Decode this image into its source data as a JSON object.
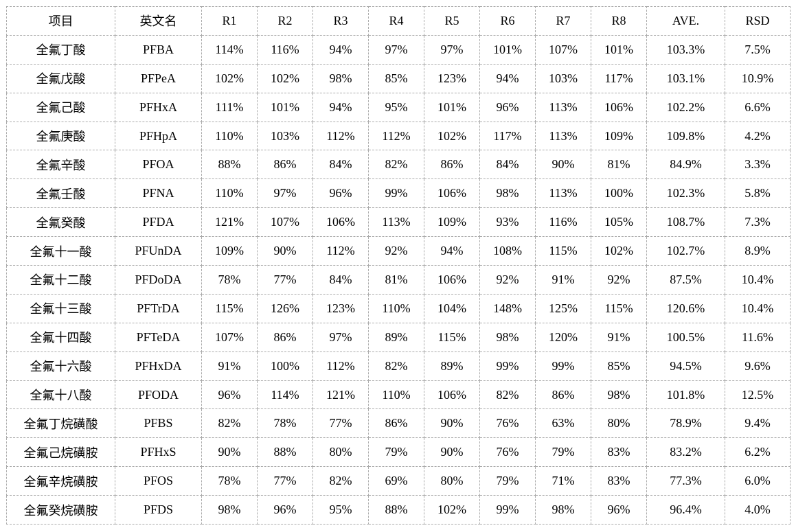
{
  "table": {
    "grid_color": "#ababab",
    "text_color": "#000000",
    "headers": [
      "项目",
      "英文名",
      "R1",
      "R2",
      "R3",
      "R4",
      "R5",
      "R6",
      "R7",
      "R8",
      "AVE.",
      "RSD"
    ],
    "rows": [
      [
        "全氟丁酸",
        "PFBA",
        "114%",
        "116%",
        "94%",
        "97%",
        "97%",
        "101%",
        "107%",
        "101%",
        "103.3%",
        "7.5%"
      ],
      [
        "全氟戊酸",
        "PFPeA",
        "102%",
        "102%",
        "98%",
        "85%",
        "123%",
        "94%",
        "103%",
        "117%",
        "103.1%",
        "10.9%"
      ],
      [
        "全氟己酸",
        "PFHxA",
        "111%",
        "101%",
        "94%",
        "95%",
        "101%",
        "96%",
        "113%",
        "106%",
        "102.2%",
        "6.6%"
      ],
      [
        "全氟庚酸",
        "PFHpA",
        "110%",
        "103%",
        "112%",
        "112%",
        "102%",
        "117%",
        "113%",
        "109%",
        "109.8%",
        "4.2%"
      ],
      [
        "全氟辛酸",
        "PFOA",
        "88%",
        "86%",
        "84%",
        "82%",
        "86%",
        "84%",
        "90%",
        "81%",
        "84.9%",
        "3.3%"
      ],
      [
        "全氟壬酸",
        "PFNA",
        "110%",
        "97%",
        "96%",
        "99%",
        "106%",
        "98%",
        "113%",
        "100%",
        "102.3%",
        "5.8%"
      ],
      [
        "全氟癸酸",
        "PFDA",
        "121%",
        "107%",
        "106%",
        "113%",
        "109%",
        "93%",
        "116%",
        "105%",
        "108.7%",
        "7.3%"
      ],
      [
        "全氟十一酸",
        "PFUnDA",
        "109%",
        "90%",
        "112%",
        "92%",
        "94%",
        "108%",
        "115%",
        "102%",
        "102.7%",
        "8.9%"
      ],
      [
        "全氟十二酸",
        "PFDoDA",
        "78%",
        "77%",
        "84%",
        "81%",
        "106%",
        "92%",
        "91%",
        "92%",
        "87.5%",
        "10.4%"
      ],
      [
        "全氟十三酸",
        "PFTrDA",
        "115%",
        "126%",
        "123%",
        "110%",
        "104%",
        "148%",
        "125%",
        "115%",
        "120.6%",
        "10.4%"
      ],
      [
        "全氟十四酸",
        "PFTeDA",
        "107%",
        "86%",
        "97%",
        "89%",
        "115%",
        "98%",
        "120%",
        "91%",
        "100.5%",
        "11.6%"
      ],
      [
        "全氟十六酸",
        "PFHxDA",
        "91%",
        "100%",
        "112%",
        "82%",
        "89%",
        "99%",
        "99%",
        "85%",
        "94.5%",
        "9.6%"
      ],
      [
        "全氟十八酸",
        "PFODA",
        "96%",
        "114%",
        "121%",
        "110%",
        "106%",
        "82%",
        "86%",
        "98%",
        "101.8%",
        "12.5%"
      ],
      [
        "全氟丁烷磺酸",
        "PFBS",
        "82%",
        "78%",
        "77%",
        "86%",
        "90%",
        "76%",
        "63%",
        "80%",
        "78.9%",
        "9.4%"
      ],
      [
        "全氟己烷磺胺",
        "PFHxS",
        "90%",
        "88%",
        "80%",
        "79%",
        "90%",
        "76%",
        "79%",
        "83%",
        "83.2%",
        "6.2%"
      ],
      [
        "全氟辛烷磺胺",
        "PFOS",
        "78%",
        "77%",
        "82%",
        "69%",
        "80%",
        "79%",
        "71%",
        "83%",
        "77.3%",
        "6.0%"
      ],
      [
        "全氟癸烷磺胺",
        "PFDS",
        "98%",
        "96%",
        "95%",
        "88%",
        "102%",
        "99%",
        "98%",
        "96%",
        "96.4%",
        "4.0%"
      ]
    ]
  }
}
